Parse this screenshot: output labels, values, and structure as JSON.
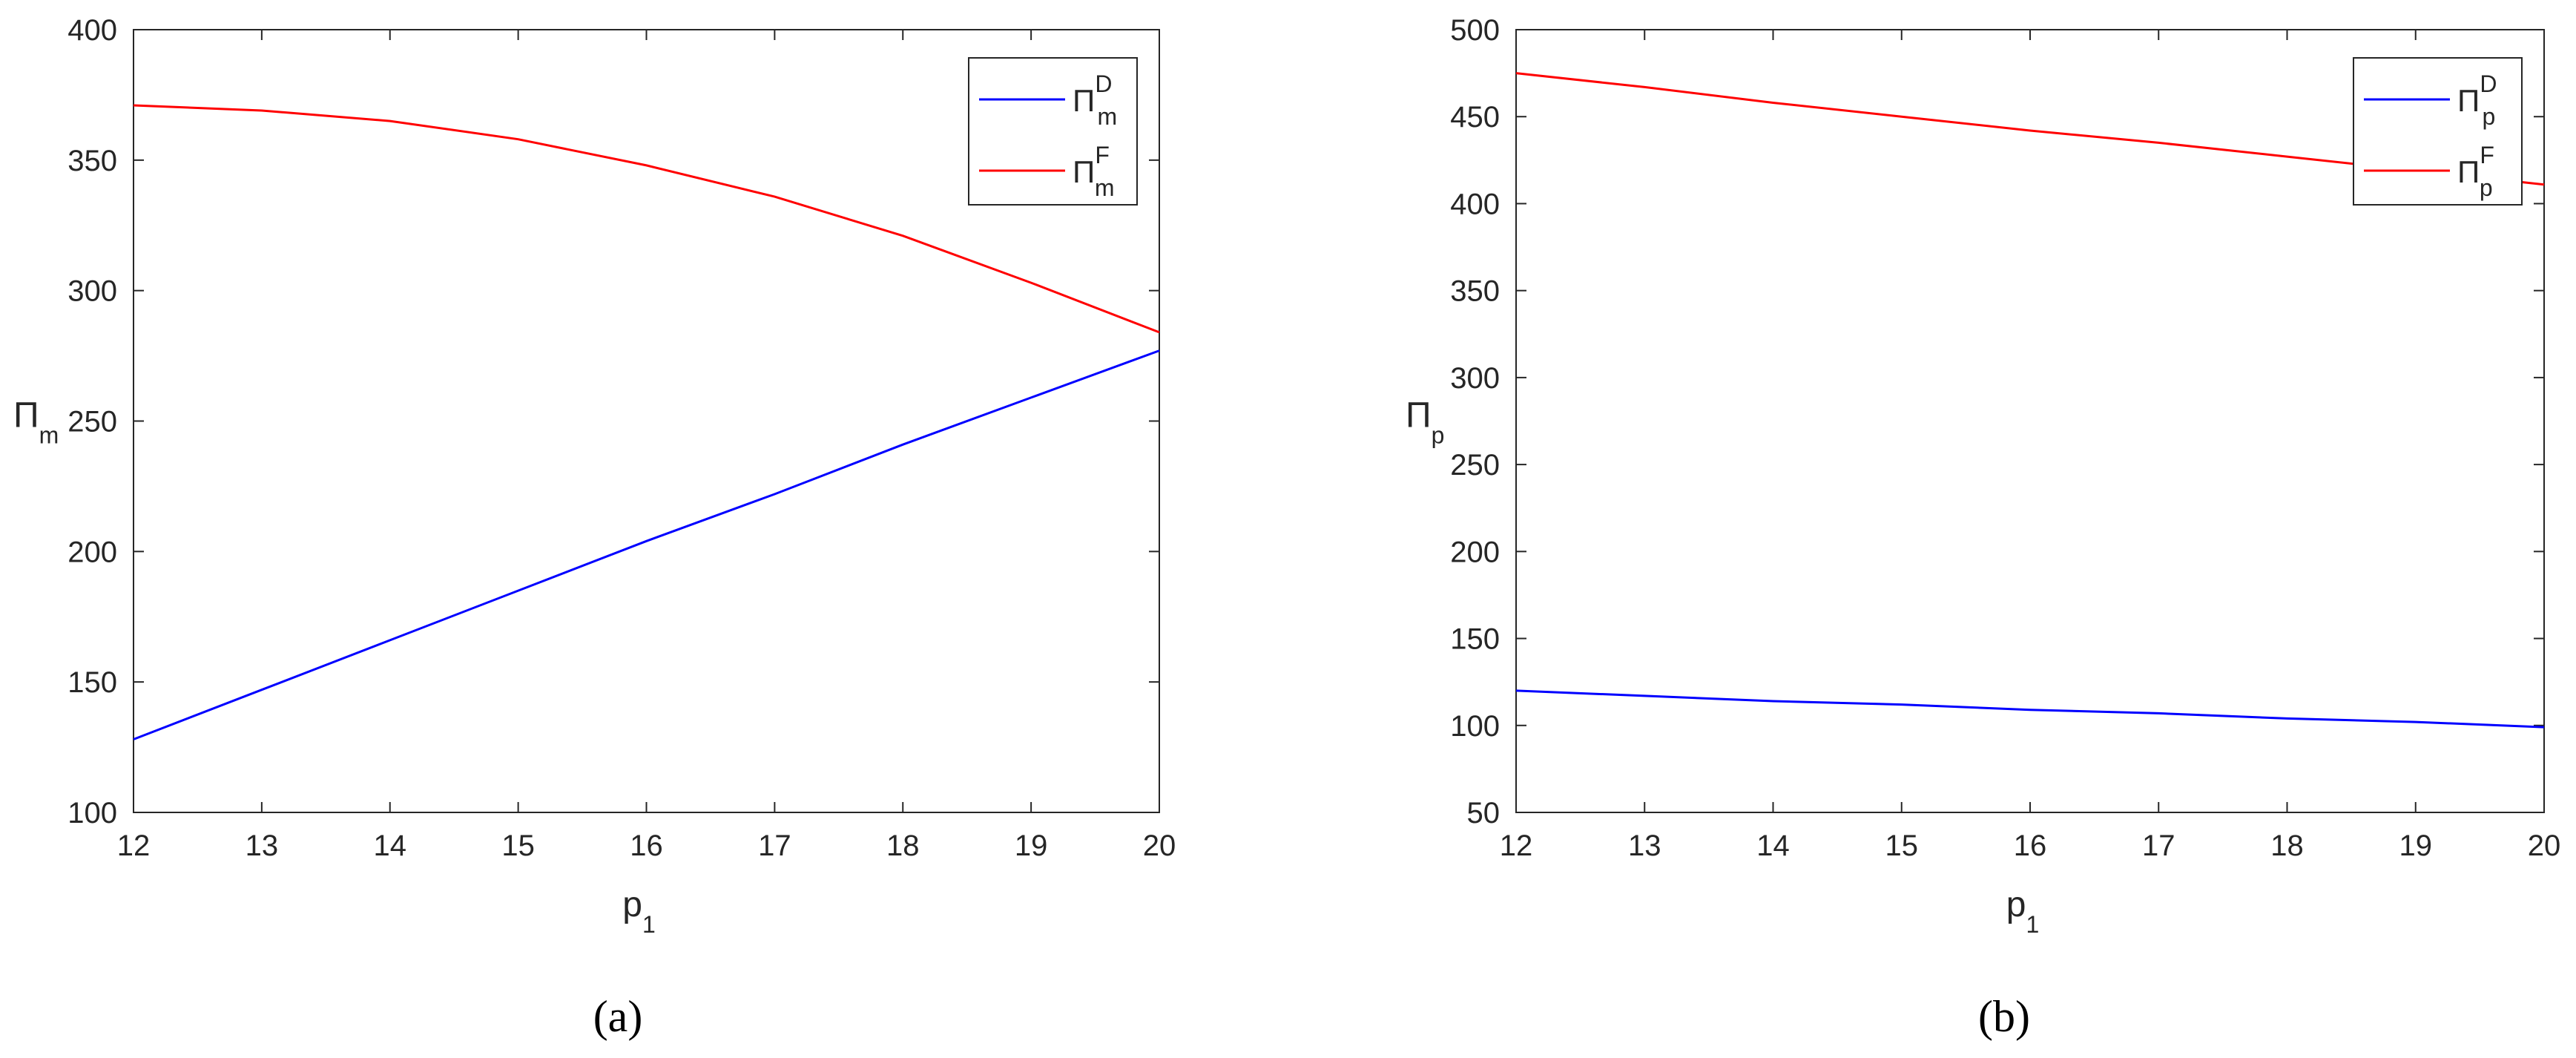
{
  "chart_data": [
    {
      "type": "line",
      "panel_label": "(a)",
      "x": [
        12,
        13,
        14,
        15,
        16,
        17,
        18,
        19,
        20
      ],
      "xlim": [
        12,
        20
      ],
      "ylim": [
        100,
        400
      ],
      "xticks": [
        12,
        13,
        14,
        15,
        16,
        17,
        18,
        19,
        20
      ],
      "yticks": [
        100,
        150,
        200,
        250,
        300,
        350,
        400
      ],
      "xlabel": "p",
      "xlabel_sub": "1",
      "ylabel": "Π",
      "ylabel_sub": "m",
      "grid": false,
      "legend_position": "top-right",
      "series": [
        {
          "name": "Π",
          "sub": "m",
          "sup": "D",
          "color": "#0000ff",
          "values": [
            128,
            147,
            166,
            185,
            204,
            222,
            241,
            259,
            277
          ]
        },
        {
          "name": "Π",
          "sub": "m",
          "sup": "F",
          "color": "#ff0000",
          "values": [
            371,
            369,
            365,
            358,
            348,
            336,
            321,
            303,
            284
          ]
        }
      ]
    },
    {
      "type": "line",
      "panel_label": "(b)",
      "x": [
        12,
        13,
        14,
        15,
        16,
        17,
        18,
        19,
        20
      ],
      "xlim": [
        12,
        20
      ],
      "ylim": [
        50,
        500
      ],
      "xticks": [
        12,
        13,
        14,
        15,
        16,
        17,
        18,
        19,
        20
      ],
      "yticks": [
        50,
        100,
        150,
        200,
        250,
        300,
        350,
        400,
        450,
        500
      ],
      "xlabel": "p",
      "xlabel_sub": "1",
      "ylabel": "Π",
      "ylabel_sub": "p",
      "grid": false,
      "legend_position": "top-right",
      "series": [
        {
          "name": "Π",
          "sub": "p",
          "sup": "D",
          "color": "#0000ff",
          "values": [
            120,
            117,
            114,
            112,
            109,
            107,
            104,
            102,
            99
          ]
        },
        {
          "name": "Π",
          "sub": "p",
          "sup": "F",
          "color": "#ff0000",
          "values": [
            475,
            467,
            458,
            450,
            442,
            435,
            427,
            419,
            411
          ]
        }
      ]
    }
  ]
}
